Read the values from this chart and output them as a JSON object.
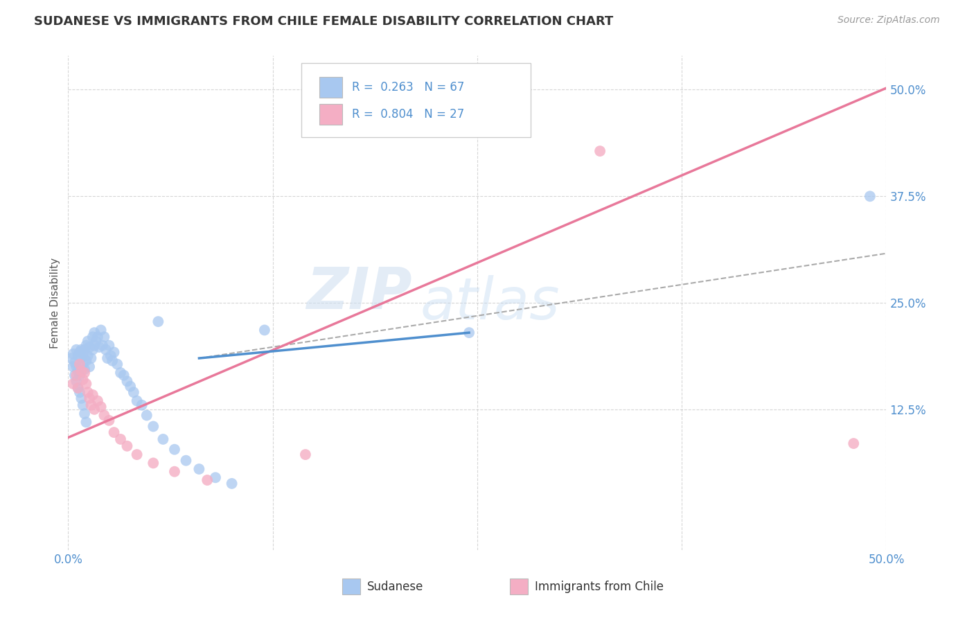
{
  "title": "SUDANESE VS IMMIGRANTS FROM CHILE FEMALE DISABILITY CORRELATION CHART",
  "source_text": "Source: ZipAtlas.com",
  "ylabel": "Female Disability",
  "xlim": [
    0.0,
    0.5
  ],
  "ylim": [
    -0.04,
    0.54
  ],
  "ytick_positions": [
    0.125,
    0.25,
    0.375,
    0.5
  ],
  "ytick_labels": [
    "12.5%",
    "25.0%",
    "37.5%",
    "50.0%"
  ],
  "xtick_positions": [
    0.0,
    0.125,
    0.25,
    0.375,
    0.5
  ],
  "xtick_labels": [
    "0.0%",
    "",
    "",
    "",
    "50.0%"
  ],
  "blue_color": "#4f8fce",
  "pink_color": "#e8789a",
  "blue_scatter_color": "#a8c8f0",
  "pink_scatter_color": "#f4aec4",
  "tick_label_color": "#4f8fce",
  "title_fontsize": 13,
  "watermark_text": "ZIPatlas",
  "blue_line_x": [
    0.08,
    0.245
  ],
  "blue_line_y": [
    0.185,
    0.215
  ],
  "pink_line_x": [
    0.0,
    0.5
  ],
  "pink_line_y": [
    0.092,
    0.502
  ],
  "dash_line_x": [
    0.08,
    0.5
  ],
  "dash_line_y": [
    0.185,
    0.308
  ],
  "sudanese_x": [
    0.002,
    0.003,
    0.004,
    0.005,
    0.005,
    0.006,
    0.006,
    0.007,
    0.007,
    0.008,
    0.008,
    0.009,
    0.009,
    0.01,
    0.01,
    0.011,
    0.011,
    0.012,
    0.012,
    0.013,
    0.013,
    0.014,
    0.015,
    0.015,
    0.016,
    0.016,
    0.017,
    0.018,
    0.019,
    0.02,
    0.021,
    0.022,
    0.023,
    0.024,
    0.025,
    0.026,
    0.027,
    0.028,
    0.03,
    0.032,
    0.034,
    0.036,
    0.038,
    0.04,
    0.042,
    0.045,
    0.048,
    0.052,
    0.058,
    0.065,
    0.072,
    0.08,
    0.09,
    0.1,
    0.003,
    0.004,
    0.005,
    0.006,
    0.007,
    0.008,
    0.009,
    0.01,
    0.011,
    0.12,
    0.245,
    0.49,
    0.055
  ],
  "sudanese_y": [
    0.185,
    0.19,
    0.18,
    0.195,
    0.175,
    0.188,
    0.17,
    0.192,
    0.165,
    0.195,
    0.185,
    0.19,
    0.178,
    0.195,
    0.172,
    0.2,
    0.182,
    0.205,
    0.188,
    0.198,
    0.175,
    0.185,
    0.21,
    0.195,
    0.215,
    0.2,
    0.205,
    0.21,
    0.198,
    0.218,
    0.2,
    0.21,
    0.195,
    0.185,
    0.2,
    0.188,
    0.182,
    0.192,
    0.178,
    0.168,
    0.165,
    0.158,
    0.152,
    0.145,
    0.135,
    0.13,
    0.118,
    0.105,
    0.09,
    0.078,
    0.065,
    0.055,
    0.045,
    0.038,
    0.175,
    0.165,
    0.158,
    0.15,
    0.145,
    0.138,
    0.13,
    0.12,
    0.11,
    0.218,
    0.215,
    0.375,
    0.228
  ],
  "chile_x": [
    0.003,
    0.005,
    0.006,
    0.007,
    0.008,
    0.009,
    0.01,
    0.011,
    0.012,
    0.013,
    0.014,
    0.015,
    0.016,
    0.018,
    0.02,
    0.022,
    0.025,
    0.028,
    0.032,
    0.036,
    0.042,
    0.052,
    0.065,
    0.085,
    0.145,
    0.325,
    0.48
  ],
  "chile_y": [
    0.155,
    0.165,
    0.15,
    0.178,
    0.17,
    0.16,
    0.168,
    0.155,
    0.145,
    0.138,
    0.13,
    0.142,
    0.125,
    0.135,
    0.128,
    0.118,
    0.112,
    0.098,
    0.09,
    0.082,
    0.072,
    0.062,
    0.052,
    0.042,
    0.072,
    0.428,
    0.085
  ]
}
